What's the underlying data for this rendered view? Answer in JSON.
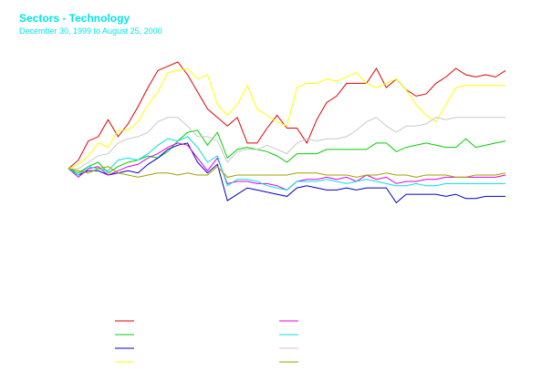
{
  "chart_data": {
    "type": "line",
    "title": "Sectors - Technology",
    "subtitle": "December 30, 1999 to August 25, 2000",
    "xlabel": "",
    "ylabel": "",
    "grid": false,
    "legend": "bottom-left",
    "ylim": [
      0,
      100
    ],
    "x": [
      0,
      1,
      2,
      3,
      4,
      5,
      6,
      7,
      8,
      9,
      10,
      11,
      12,
      13,
      14,
      15,
      16,
      17,
      18,
      19,
      20,
      21,
      22,
      23,
      24,
      25,
      26,
      27,
      28,
      29,
      30,
      31,
      32,
      33,
      34,
      35,
      36,
      37,
      38,
      39,
      40,
      41,
      42,
      43,
      44
    ],
    "series": [
      {
        "color": "#e00000",
        "values": [
          50,
          54,
          63,
          65,
          73,
          65,
          71,
          79,
          88,
          96,
          98,
          100,
          94,
          86,
          78,
          74,
          70,
          74,
          62,
          62,
          69,
          75,
          69,
          69,
          62,
          73,
          81,
          84,
          90,
          90,
          90,
          97,
          88,
          92,
          87,
          84,
          85,
          90,
          93,
          97,
          94,
          93,
          94,
          93,
          96
        ]
      },
      {
        "color": "#00d000",
        "values": [
          50,
          48,
          51,
          53,
          48,
          51,
          53,
          54,
          56,
          55,
          58,
          63,
          67,
          68,
          61,
          67,
          55,
          59,
          60,
          59,
          58,
          56,
          53,
          57,
          57,
          57,
          59,
          59,
          59,
          59,
          59,
          62,
          62,
          58,
          60,
          61,
          62,
          61,
          60,
          60,
          64,
          60,
          61,
          62,
          63
        ]
      },
      {
        "color": "#0000c8",
        "values": [
          50,
          47,
          49,
          49,
          47,
          48,
          49,
          48,
          52,
          55,
          59,
          61,
          62,
          53,
          48,
          52,
          35,
          38,
          41,
          40,
          39,
          38,
          37,
          41,
          42,
          41,
          40,
          40,
          41,
          40,
          41,
          41,
          41,
          34,
          38,
          38,
          38,
          38,
          37,
          38,
          36,
          36,
          37,
          37,
          37
        ]
      },
      {
        "color": "#ffff00",
        "values": [
          50,
          52,
          56,
          62,
          60,
          68,
          68,
          72,
          80,
          86,
          95,
          96,
          97,
          92,
          94,
          80,
          75,
          80,
          89,
          78,
          75,
          72,
          70,
          88,
          90,
          90,
          92,
          91,
          93,
          95,
          90,
          88,
          90,
          92,
          87,
          80,
          75,
          72,
          80,
          88,
          89,
          89,
          89,
          89,
          89
        ]
      },
      {
        "color": "#e000e0",
        "values": [
          50,
          46,
          50,
          51,
          47,
          49,
          51,
          52,
          55,
          57,
          60,
          62,
          61,
          55,
          49,
          55,
          43,
          44,
          44,
          43,
          43,
          42,
          40,
          44,
          45,
          45,
          46,
          45,
          46,
          44,
          47,
          45,
          46,
          43,
          44,
          44,
          45,
          45,
          46,
          46,
          46,
          46,
          46,
          46,
          47
        ]
      },
      {
        "color": "#00e0e0",
        "values": [
          50,
          47,
          51,
          50,
          49,
          54,
          55,
          54,
          57,
          61,
          64,
          63,
          65,
          60,
          53,
          56,
          42,
          45,
          45,
          44,
          42,
          41,
          40,
          44,
          44,
          44,
          45,
          44,
          43,
          44,
          45,
          44,
          43,
          42,
          42,
          43,
          42,
          42,
          43,
          43,
          43,
          43,
          43,
          43,
          43
        ]
      },
      {
        "color": "#c8c8c8",
        "values": [
          50,
          50,
          53,
          56,
          57,
          62,
          64,
          65,
          67,
          72,
          74,
          74,
          70,
          65,
          65,
          63,
          53,
          58,
          59,
          59,
          61,
          59,
          57,
          62,
          64,
          63,
          64,
          64,
          65,
          68,
          72,
          74,
          70,
          67,
          70,
          70,
          71,
          74,
          73,
          74,
          74,
          74,
          74,
          74,
          74
        ]
      },
      {
        "color": "#a0a000",
        "values": [
          50,
          49,
          48,
          50,
          51,
          48,
          47,
          46,
          47,
          48,
          48,
          47,
          48,
          47,
          47,
          51,
          46,
          47,
          47,
          47,
          47,
          47,
          47,
          48,
          48,
          48,
          47,
          47,
          47,
          46,
          47,
          47,
          48,
          47,
          47,
          46,
          47,
          47,
          47,
          46,
          46,
          47,
          47,
          47,
          48
        ]
      }
    ]
  }
}
